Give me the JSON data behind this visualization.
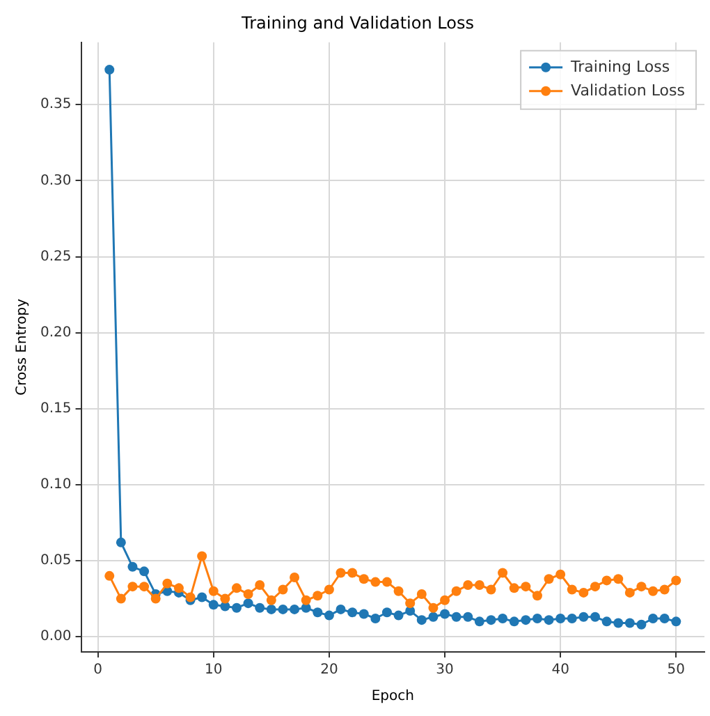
{
  "chart_data": {
    "type": "line",
    "title": "Training and Validation Loss",
    "xlabel": "Epoch",
    "ylabel": "Cross Entropy",
    "x": [
      1,
      2,
      3,
      4,
      5,
      6,
      7,
      8,
      9,
      10,
      11,
      12,
      13,
      14,
      15,
      16,
      17,
      18,
      19,
      20,
      21,
      22,
      23,
      24,
      25,
      26,
      27,
      28,
      29,
      30,
      31,
      32,
      33,
      34,
      35,
      36,
      37,
      38,
      39,
      40,
      41,
      42,
      43,
      44,
      45,
      46,
      47,
      48,
      49,
      50
    ],
    "series": [
      {
        "name": "Training Loss",
        "color": "#1f77b4",
        "values": [
          0.373,
          0.062,
          0.046,
          0.043,
          0.028,
          0.03,
          0.029,
          0.024,
          0.026,
          0.021,
          0.02,
          0.019,
          0.022,
          0.019,
          0.018,
          0.018,
          0.018,
          0.019,
          0.016,
          0.014,
          0.018,
          0.016,
          0.015,
          0.012,
          0.016,
          0.014,
          0.017,
          0.011,
          0.013,
          0.015,
          0.013,
          0.013,
          0.01,
          0.011,
          0.012,
          0.01,
          0.011,
          0.012,
          0.011,
          0.012,
          0.012,
          0.013,
          0.013,
          0.01,
          0.009,
          0.009,
          0.008,
          0.012,
          0.012,
          0.01
        ]
      },
      {
        "name": "Validation Loss",
        "color": "#ff7f0e",
        "values": [
          0.04,
          0.025,
          0.033,
          0.033,
          0.025,
          0.035,
          0.032,
          0.026,
          0.053,
          0.03,
          0.025,
          0.032,
          0.028,
          0.034,
          0.024,
          0.031,
          0.039,
          0.024,
          0.027,
          0.031,
          0.042,
          0.042,
          0.038,
          0.036,
          0.036,
          0.03,
          0.022,
          0.028,
          0.019,
          0.024,
          0.03,
          0.034,
          0.034,
          0.031,
          0.042,
          0.032,
          0.033,
          0.027,
          0.038,
          0.041,
          0.031,
          0.029,
          0.033,
          0.037,
          0.038,
          0.029,
          0.033,
          0.03,
          0.031,
          0.037
        ]
      }
    ],
    "xlim": [
      -1.45,
      52.45
    ],
    "xticks": [
      0,
      10,
      20,
      30,
      40,
      50
    ],
    "ylim": [
      -0.01,
      0.391
    ],
    "yticks": [
      {
        "value": 0,
        "label": "0.00"
      },
      {
        "value": 0.05,
        "label": "0.05"
      },
      {
        "value": 0.1,
        "label": "0.10"
      },
      {
        "value": 0.15,
        "label": "0.15"
      },
      {
        "value": 0.2,
        "label": "0.20"
      },
      {
        "value": 0.25,
        "label": "0.25"
      },
      {
        "value": 0.3,
        "label": "0.30"
      },
      {
        "value": 0.35,
        "label": "0.35"
      }
    ],
    "grid": true,
    "legend": "top right",
    "marker": "circle",
    "line_style": "solid"
  }
}
